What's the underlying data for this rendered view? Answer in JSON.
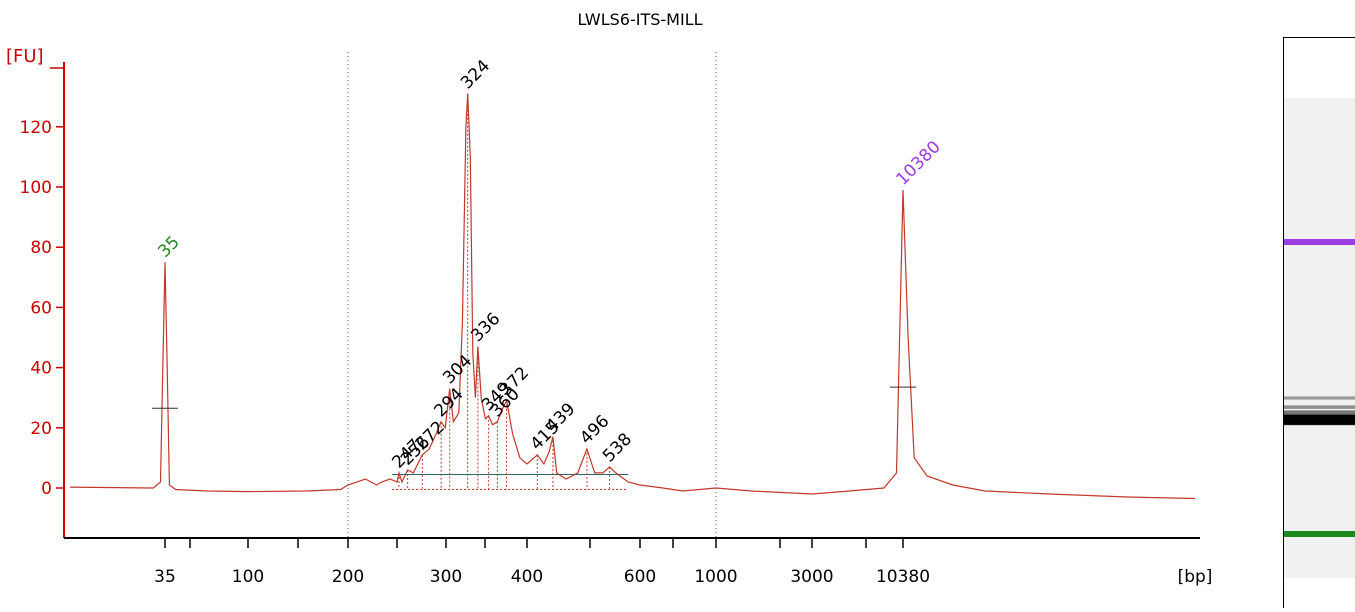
{
  "chart_data": {
    "type": "line",
    "title": "LWLS6-ITS-MILL",
    "ylabel": "[FU]",
    "xlabel": "[bp]",
    "ylim": [
      -17,
      142
    ],
    "y_ticks": [
      0,
      20,
      40,
      60,
      80,
      100,
      120
    ],
    "x_tick_labels": [
      "35",
      "100",
      "200",
      "300",
      "400",
      "600",
      "1000",
      "3000",
      "10380"
    ],
    "grid": false,
    "marker_lines_bp": [
      200,
      1000
    ],
    "series": [
      {
        "color": "#c0392b",
        "x_axis_type": "ladder-calibrated bp",
        "points": [
          {
            "x": 10,
            "y": 0.3
          },
          {
            "x": 30,
            "y": 0
          },
          {
            "x": 33,
            "y": 2
          },
          {
            "x": 34,
            "y": 40
          },
          {
            "x": 35,
            "y": 75
          },
          {
            "x": 36,
            "y": 40
          },
          {
            "x": 37,
            "y": 1
          },
          {
            "x": 40,
            "y": -0.5
          },
          {
            "x": 60,
            "y": -1
          },
          {
            "x": 100,
            "y": -1.2
          },
          {
            "x": 150,
            "y": -1
          },
          {
            "x": 190,
            "y": -0.5
          },
          {
            "x": 200,
            "y": 1
          },
          {
            "x": 215,
            "y": 3
          },
          {
            "x": 225,
            "y": 1
          },
          {
            "x": 230,
            "y": 2
          },
          {
            "x": 238,
            "y": 3
          },
          {
            "x": 245,
            "y": 2
          },
          {
            "x": 247,
            "y": 5
          },
          {
            "x": 250,
            "y": 2
          },
          {
            "x": 256,
            "y": 6
          },
          {
            "x": 262,
            "y": 5
          },
          {
            "x": 272,
            "y": 11
          },
          {
            "x": 280,
            "y": 13
          },
          {
            "x": 288,
            "y": 18
          },
          {
            "x": 294,
            "y": 22
          },
          {
            "x": 299,
            "y": 20
          },
          {
            "x": 304,
            "y": 33
          },
          {
            "x": 308,
            "y": 22
          },
          {
            "x": 314,
            "y": 25
          },
          {
            "x": 318,
            "y": 55
          },
          {
            "x": 322,
            "y": 120
          },
          {
            "x": 324,
            "y": 131
          },
          {
            "x": 327,
            "y": 110
          },
          {
            "x": 330,
            "y": 45
          },
          {
            "x": 333,
            "y": 30
          },
          {
            "x": 336,
            "y": 47
          },
          {
            "x": 340,
            "y": 30
          },
          {
            "x": 345,
            "y": 23
          },
          {
            "x": 349,
            "y": 24
          },
          {
            "x": 354,
            "y": 21
          },
          {
            "x": 360,
            "y": 22
          },
          {
            "x": 366,
            "y": 26
          },
          {
            "x": 372,
            "y": 29
          },
          {
            "x": 380,
            "y": 18
          },
          {
            "x": 390,
            "y": 10
          },
          {
            "x": 400,
            "y": 8
          },
          {
            "x": 415,
            "y": 11
          },
          {
            "x": 425,
            "y": 8
          },
          {
            "x": 433,
            "y": 12
          },
          {
            "x": 439,
            "y": 17
          },
          {
            "x": 445,
            "y": 5
          },
          {
            "x": 460,
            "y": 3
          },
          {
            "x": 480,
            "y": 5
          },
          {
            "x": 496,
            "y": 13
          },
          {
            "x": 510,
            "y": 5
          },
          {
            "x": 525,
            "y": 5
          },
          {
            "x": 538,
            "y": 7
          },
          {
            "x": 550,
            "y": 5
          },
          {
            "x": 575,
            "y": 2
          },
          {
            "x": 600,
            "y": 1
          },
          {
            "x": 700,
            "y": 0
          },
          {
            "x": 800,
            "y": -1
          },
          {
            "x": 1000,
            "y": 0
          },
          {
            "x": 1500,
            "y": -1
          },
          {
            "x": 3000,
            "y": -2
          },
          {
            "x": 5000,
            "y": -1
          },
          {
            "x": 8000,
            "y": 0
          },
          {
            "x": 9500,
            "y": 5
          },
          {
            "x": 10000,
            "y": 60
          },
          {
            "x": 10380,
            "y": 99
          },
          {
            "x": 10700,
            "y": 50
          },
          {
            "x": 11100,
            "y": 10
          },
          {
            "x": 12000,
            "y": 4
          },
          {
            "x": 14000,
            "y": 1
          },
          {
            "x": 17000,
            "y": -1
          },
          {
            "x": 25000,
            "y": -2
          },
          {
            "x": 40000,
            "y": -3
          },
          {
            "x": 60000,
            "y": -3.5
          }
        ]
      }
    ],
    "peaks": [
      {
        "label": "35",
        "bp": 35,
        "y": 75,
        "color": "#1e8a1e"
      },
      {
        "label": "247",
        "bp": 247,
        "y": 5,
        "color": "#000000"
      },
      {
        "label": "256",
        "bp": 256,
        "y": 6,
        "color": "#000000"
      },
      {
        "label": "272",
        "bp": 272,
        "y": 11,
        "color": "#000000"
      },
      {
        "label": "294",
        "bp": 294,
        "y": 22,
        "color": "#000000"
      },
      {
        "label": "304",
        "bp": 304,
        "y": 33,
        "color": "#000000"
      },
      {
        "label": "324",
        "bp": 324,
        "y": 131,
        "color": "#000000"
      },
      {
        "label": "336",
        "bp": 336,
        "y": 47,
        "color": "#000000"
      },
      {
        "label": "349",
        "bp": 349,
        "y": 24,
        "color": "#000000"
      },
      {
        "label": "360",
        "bp": 360,
        "y": 22,
        "color": "#000000"
      },
      {
        "label": "372",
        "bp": 372,
        "y": 29,
        "color": "#000000"
      },
      {
        "label": "415",
        "bp": 415,
        "y": 11,
        "color": "#000000"
      },
      {
        "label": "439",
        "bp": 439,
        "y": 17,
        "color": "#000000"
      },
      {
        "label": "496",
        "bp": 496,
        "y": 13,
        "color": "#000000"
      },
      {
        "label": "538",
        "bp": 538,
        "y": 7,
        "color": "#000000"
      },
      {
        "label": "10380",
        "bp": 10380,
        "y": 99,
        "color": "#9b3de0"
      }
    ],
    "region_baseline": {
      "from_bp": 240,
      "to_bp": 575,
      "y": 4.5
    },
    "peak_bars": [
      {
        "bp": 35,
        "y": 26.5
      },
      {
        "bp": 10380,
        "y": 33.5
      }
    ]
  },
  "gel": {
    "bands": [
      {
        "bp": 10380,
        "color": "#9b3de0",
        "strength": 1.0
      },
      {
        "bp": 324,
        "color": "#000000",
        "strength": 1.0
      },
      {
        "bp": 336,
        "color": "#000000",
        "strength": 0.6
      },
      {
        "bp": 372,
        "color": "#000000",
        "strength": 0.35
      },
      {
        "bp": 304,
        "color": "#000000",
        "strength": 0.3
      },
      {
        "bp": 415,
        "color": "#000000",
        "strength": 0.2
      },
      {
        "bp": 496,
        "color": "#000000",
        "strength": 0.15
      },
      {
        "bp": 35,
        "color": "#1e8a1e",
        "strength": 1.0
      }
    ]
  },
  "colors": {
    "axis": "#cc0000",
    "trace": "#c0392b",
    "label": "#000000"
  }
}
